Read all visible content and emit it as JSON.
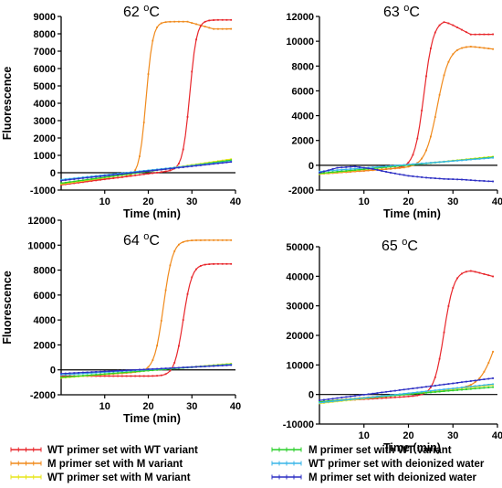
{
  "legend": [
    {
      "key": "wt_wt",
      "label": "WT primer set with WT variant",
      "color": "#e8262b"
    },
    {
      "key": "m_m",
      "label": "M primer set with M variant",
      "color": "#f08a1c"
    },
    {
      "key": "wt_m",
      "label": "WT primer set with M variant",
      "color": "#e7e61a"
    },
    {
      "key": "m_wt",
      "label": "M primer set with WT variant",
      "color": "#2bcf2b"
    },
    {
      "key": "wt_w",
      "label": "WT primer set with deionized water",
      "color": "#39b6e8"
    },
    {
      "key": "m_w",
      "label": "M primer set with deionized water",
      "color": "#2d2fc4"
    }
  ],
  "chart_data": [
    {
      "type": "line",
      "title": "62 °C",
      "title_parts": [
        "62 ",
        "o",
        "C"
      ],
      "xlabel": "Time (min)",
      "ylabel": "Fluorescence",
      "xlim": [
        0,
        40
      ],
      "ylim": [
        -1000,
        9000
      ],
      "xticks": [
        10,
        20,
        30,
        40
      ],
      "yticks": [
        -1000,
        0,
        1000,
        2000,
        3000,
        4000,
        5000,
        6000,
        7000,
        8000,
        9000
      ],
      "series": [
        {
          "key": "m_m",
          "type": "sigmoid",
          "base0": -600,
          "base1": 350,
          "plateau": 8700,
          "mid": 19.5,
          "k": 1.3,
          "decay": 0.05,
          "decay_start": 29
        },
        {
          "key": "wt_wt",
          "type": "sigmoid",
          "base0": -700,
          "base1": 550,
          "plateau": 8800,
          "mid": 29.5,
          "k": 1.25
        },
        {
          "key": "wt_m",
          "type": "linear",
          "y0": -650,
          "y1": 780
        },
        {
          "key": "m_wt",
          "type": "linear",
          "y0": -600,
          "y1": 720
        },
        {
          "key": "wt_w",
          "type": "linear",
          "y0": -400,
          "y1": 650
        },
        {
          "key": "m_w",
          "type": "linear",
          "y0": -450,
          "y1": 620
        }
      ]
    },
    {
      "type": "line",
      "title": "63 °C",
      "title_parts": [
        "63 ",
        "o",
        "C"
      ],
      "xlabel": "Time (min)",
      "ylabel": "",
      "xlim": [
        0,
        40
      ],
      "ylim": [
        -2000,
        12000
      ],
      "xticks": [
        10,
        20,
        30,
        40
      ],
      "yticks": [
        -2000,
        0,
        2000,
        4000,
        6000,
        8000,
        10000,
        12000
      ],
      "series": [
        {
          "key": "wt_wt",
          "type": "sigmoid",
          "base0": -700,
          "base1": 300,
          "plateau": 11700,
          "mid": 23.5,
          "k": 0.95,
          "decay": 0.1,
          "decay_start": 28
        },
        {
          "key": "m_m",
          "type": "sigmoid",
          "base0": -700,
          "base1": 300,
          "plateau": 9600,
          "mid": 26.5,
          "k": 0.75,
          "decay": 0.03,
          "decay_start": 34
        },
        {
          "key": "wt_m",
          "type": "linear",
          "y0": -700,
          "y1": 700
        },
        {
          "key": "m_wt",
          "type": "linear",
          "y0": -650,
          "y1": 650
        },
        {
          "key": "wt_w",
          "type": "linear",
          "y0": -500,
          "y1": 600
        },
        {
          "key": "m_w",
          "type": "points",
          "x": [
            0,
            4,
            8,
            12,
            16,
            20,
            24,
            28,
            32,
            36,
            39
          ],
          "y": [
            -600,
            -200,
            -100,
            -300,
            -600,
            -850,
            -1000,
            -1100,
            -1150,
            -1250,
            -1300
          ]
        }
      ]
    },
    {
      "type": "line",
      "title": "64 °C",
      "title_parts": [
        "64 ",
        "o",
        "C"
      ],
      "xlabel": "Time (min)",
      "ylabel": "Fluorescence",
      "xlim": [
        0,
        40
      ],
      "ylim": [
        -2000,
        12000
      ],
      "xticks": [
        10,
        20,
        30,
        40
      ],
      "yticks": [
        -2000,
        0,
        2000,
        4000,
        6000,
        8000,
        10000,
        12000
      ],
      "series": [
        {
          "key": "m_m",
          "type": "sigmoid",
          "base0": -600,
          "base1": 300,
          "plateau": 10400,
          "mid": 23.5,
          "k": 0.95
        },
        {
          "key": "wt_wt",
          "type": "sigmoid",
          "base0": -500,
          "base1": -500,
          "plateau": 8500,
          "mid": 28,
          "k": 1.0
        },
        {
          "key": "wt_m",
          "type": "linear",
          "y0": -650,
          "y1": 500
        },
        {
          "key": "m_wt",
          "type": "linear",
          "y0": -600,
          "y1": 450
        },
        {
          "key": "wt_w",
          "type": "linear",
          "y0": -400,
          "y1": 420
        },
        {
          "key": "m_w",
          "type": "linear",
          "y0": -300,
          "y1": 380
        }
      ]
    },
    {
      "type": "line",
      "title": "65 °C",
      "title_parts": [
        "65 ",
        "o",
        "C"
      ],
      "xlabel": "Time (min)",
      "ylabel": "",
      "xlim": [
        0,
        40
      ],
      "ylim": [
        -10000,
        50000
      ],
      "xticks": [
        10,
        20,
        30,
        40
      ],
      "yticks": [
        -10000,
        0,
        10000,
        20000,
        30000,
        40000,
        50000
      ],
      "series": [
        {
          "key": "wt_wt",
          "type": "sigmoid",
          "base0": -2500,
          "base1": 1000,
          "plateau": 42000,
          "mid": 28,
          "k": 0.9,
          "decay": 0.06,
          "decay_start": 34
        },
        {
          "key": "m_m",
          "type": "sigmoid",
          "base0": -2500,
          "base1": 3000,
          "plateau": 30000,
          "mid": 39.5,
          "k": 0.6
        },
        {
          "key": "wt_m",
          "type": "linear",
          "y0": -3000,
          "y1": 3200
        },
        {
          "key": "m_wt",
          "type": "linear",
          "y0": -2500,
          "y1": 2500
        },
        {
          "key": "wt_w",
          "type": "linear",
          "y0": -2800,
          "y1": 3500
        },
        {
          "key": "m_w",
          "type": "linear",
          "y0": -2000,
          "y1": 5500
        }
      ]
    }
  ]
}
